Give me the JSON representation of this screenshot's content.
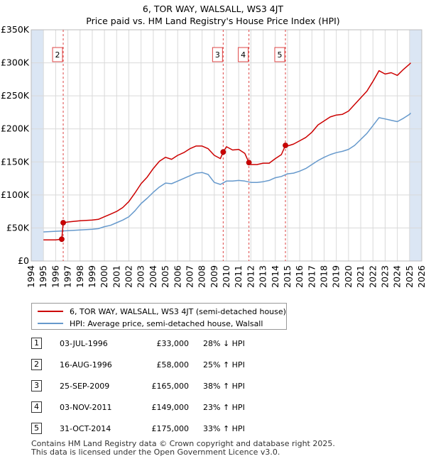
{
  "title_line1": "6, TOR WAY, WALSALL, WS3 4JT",
  "title_line2": "Price paid vs. HM Land Registry's House Price Index (HPI)",
  "colors": {
    "property": "#cc0000",
    "hpi": "#6699cc",
    "shade": "#dbe6f4",
    "grid": "#d9d9d9",
    "marker_line": "#dd4444"
  },
  "chart_data": {
    "type": "line",
    "title": "Price paid vs. HM Land Registry's House Price Index (HPI)",
    "xlim": [
      1994,
      2026
    ],
    "ylim": [
      0,
      350000
    ],
    "y_ticks": [
      {
        "value": 0,
        "label": "£0"
      },
      {
        "value": 50000,
        "label": "£50K"
      },
      {
        "value": 100000,
        "label": "£100K"
      },
      {
        "value": 150000,
        "label": "£150K"
      },
      {
        "value": 200000,
        "label": "£200K"
      },
      {
        "value": 250000,
        "label": "£250K"
      },
      {
        "value": 300000,
        "label": "£300K"
      },
      {
        "value": 350000,
        "label": "£350K"
      }
    ],
    "x_ticks": [
      1994,
      1995,
      1996,
      1997,
      1998,
      1999,
      2000,
      2001,
      2002,
      2003,
      2004,
      2005,
      2006,
      2007,
      2008,
      2009,
      2010,
      2011,
      2012,
      2013,
      2014,
      2015,
      2016,
      2017,
      2018,
      2019,
      2020,
      2021,
      2022,
      2023,
      2024,
      2025,
      2026
    ],
    "shaded_ranges": [
      [
        1994,
        1995
      ],
      [
        2025,
        2026
      ]
    ],
    "series": [
      {
        "name": "6, TOR WAY, WALSALL, WS3 4JT (semi-detached house)",
        "x": [
          1995.0,
          1996.0,
          1996.5,
          1996.62,
          1997.0,
          1998.0,
          1999.0,
          1999.5,
          2000.0,
          2000.5,
          2001.0,
          2001.5,
          2002.0,
          2002.5,
          2003.0,
          2003.5,
          2004.0,
          2004.5,
          2005.0,
          2005.5,
          2006.0,
          2006.5,
          2007.0,
          2007.5,
          2008.0,
          2008.5,
          2009.0,
          2009.5,
          2009.73,
          2010.0,
          2010.5,
          2011.0,
          2011.5,
          2011.84,
          2012.0,
          2012.5,
          2013.0,
          2013.5,
          2014.0,
          2014.5,
          2014.83,
          2015.0,
          2015.5,
          2016.0,
          2016.5,
          2017.0,
          2017.5,
          2018.0,
          2018.5,
          2019.0,
          2019.5,
          2020.0,
          2020.5,
          2021.0,
          2021.5,
          2022.0,
          2022.5,
          2023.0,
          2023.5,
          2024.0,
          2024.5,
          2025.0,
          2025.1
        ],
        "values": [
          32000,
          32000,
          33000,
          58000,
          59000,
          61000,
          62000,
          63000,
          67000,
          71000,
          75000,
          81000,
          90000,
          103000,
          117000,
          127000,
          140000,
          151000,
          157000,
          154000,
          160000,
          164000,
          170000,
          174000,
          174000,
          170000,
          160000,
          155000,
          165000,
          173000,
          168000,
          169000,
          163000,
          149000,
          146000,
          146000,
          148000,
          148000,
          155000,
          161000,
          175000,
          174000,
          177000,
          182000,
          187000,
          195000,
          206000,
          212000,
          218000,
          221000,
          222000,
          227000,
          237000,
          247000,
          257000,
          272000,
          288000,
          283000,
          285000,
          281000,
          290000,
          298000,
          300000
        ]
      },
      {
        "name": "HPI: Average price, semi-detached house, Walsall",
        "x": [
          1995.0,
          1996.0,
          1997.0,
          1998.0,
          1999.0,
          1999.5,
          2000.0,
          2000.5,
          2001.0,
          2001.5,
          2002.0,
          2002.5,
          2003.0,
          2003.5,
          2004.0,
          2004.5,
          2005.0,
          2005.5,
          2006.0,
          2006.5,
          2007.0,
          2007.5,
          2008.0,
          2008.5,
          2009.0,
          2009.5,
          2010.0,
          2010.5,
          2011.0,
          2011.5,
          2012.0,
          2012.5,
          2013.0,
          2013.5,
          2014.0,
          2014.5,
          2015.0,
          2015.5,
          2016.0,
          2016.5,
          2017.0,
          2017.5,
          2018.0,
          2018.5,
          2019.0,
          2019.5,
          2020.0,
          2020.5,
          2021.0,
          2021.5,
          2022.0,
          2022.5,
          2023.0,
          2023.5,
          2024.0,
          2024.5,
          2025.0,
          2025.1
        ],
        "values": [
          44000,
          45000,
          46000,
          47000,
          48000,
          49000,
          52000,
          54000,
          58000,
          62000,
          67000,
          76000,
          87000,
          95000,
          104000,
          112000,
          118000,
          117000,
          121000,
          125000,
          129000,
          133000,
          134000,
          131000,
          119000,
          116000,
          121000,
          121000,
          122000,
          121000,
          119000,
          119000,
          120000,
          122000,
          126000,
          128000,
          132000,
          133000,
          136000,
          140000,
          146000,
          152000,
          157000,
          161000,
          164000,
          166000,
          169000,
          175000,
          184000,
          193000,
          205000,
          217000,
          215000,
          213000,
          211000,
          216000,
          222000,
          224000
        ]
      }
    ],
    "sale_points": [
      {
        "label": "1",
        "x": 1996.5,
        "y": 33000
      },
      {
        "label": "2",
        "x": 1996.62,
        "y": 58000
      },
      {
        "label": "3",
        "x": 2009.73,
        "y": 165000
      },
      {
        "label": "4",
        "x": 2011.84,
        "y": 149000
      },
      {
        "label": "5",
        "x": 2014.83,
        "y": 175000
      }
    ],
    "marker_boxes": [
      {
        "label": "2",
        "x": 1996.62
      },
      {
        "label": "3",
        "x": 2009.73
      },
      {
        "label": "4",
        "x": 2011.84
      },
      {
        "label": "5",
        "x": 2014.83
      }
    ]
  },
  "legend": {
    "property_label": "6, TOR WAY, WALSALL, WS3 4JT (semi-detached house)",
    "hpi_label": "HPI: Average price, semi-detached house, Walsall"
  },
  "sales": [
    {
      "num": "1",
      "date": "03-JUL-1996",
      "price": "£33,000",
      "hpi": "28% ↓ HPI"
    },
    {
      "num": "2",
      "date": "16-AUG-1996",
      "price": "£58,000",
      "hpi": "25% ↑ HPI"
    },
    {
      "num": "3",
      "date": "25-SEP-2009",
      "price": "£165,000",
      "hpi": "38% ↑ HPI"
    },
    {
      "num": "4",
      "date": "03-NOV-2011",
      "price": "£149,000",
      "hpi": "23% ↑ HPI"
    },
    {
      "num": "5",
      "date": "31-OCT-2014",
      "price": "£175,000",
      "hpi": "33% ↑ HPI"
    }
  ],
  "footer_line1": "Contains HM Land Registry data © Crown copyright and database right 2025.",
  "footer_line2": "This data is licensed under the Open Government Licence v3.0."
}
